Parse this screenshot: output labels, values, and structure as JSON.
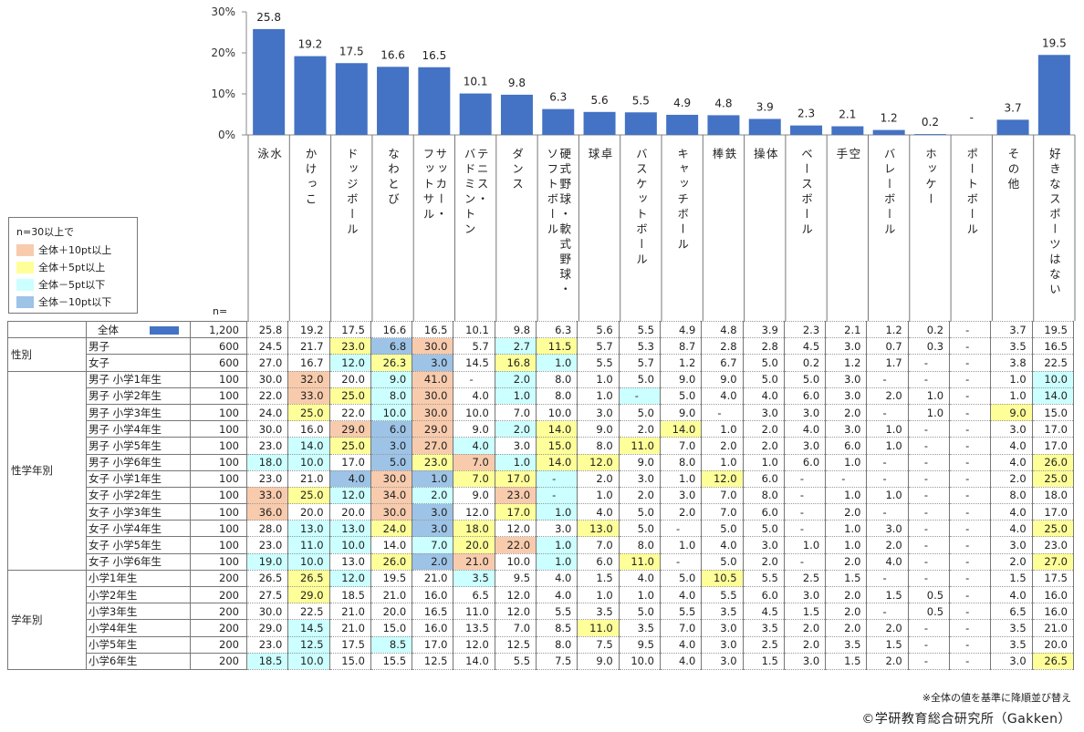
{
  "chart_data": {
    "type": "bar",
    "yaxis": {
      "ylim": [
        0,
        30
      ],
      "ticks": [
        "0%",
        "10%",
        "20%",
        "30%"
      ]
    },
    "categories": [
      "水泳",
      "かけっこ",
      "ドッジボール",
      "なわとび",
      "サッカー・フットサル",
      "テニス・バドミントン",
      "ダンス",
      "硬式野球・軟式野球・ソフトボール",
      "卓球",
      "バスケットボール",
      "キャッチボール",
      "鉄棒",
      "体操",
      "ベースボール",
      "空手",
      "バレーボール",
      "ホッケー",
      "ポートボール",
      "その他",
      "好きなスポーツはない"
    ],
    "category_lines": [
      [
        "水",
        "泳"
      ],
      [
        "かけっこ"
      ],
      [
        "ドッジボール"
      ],
      [
        "なわとび"
      ],
      [
        "サッカー・",
        "フットサル"
      ],
      [
        "テニス・",
        "バドミントン"
      ],
      [
        "ダンス"
      ],
      [
        "硬式野球・軟式野球・",
        "ソフトボール"
      ],
      [
        "卓",
        "球"
      ],
      [
        "バスケットボール"
      ],
      [
        "キャッチボール"
      ],
      [
        "鉄",
        "棒"
      ],
      [
        "体",
        "操"
      ],
      [
        "ベースボール"
      ],
      [
        "空",
        "手"
      ],
      [
        "バレーボール"
      ],
      [
        "ホッケー"
      ],
      [
        "ポートボール"
      ],
      [
        "その他"
      ],
      [
        "好きなスポーツはない"
      ]
    ],
    "values": [
      25.8,
      19.2,
      17.5,
      16.6,
      16.5,
      10.1,
      9.8,
      6.3,
      5.6,
      5.5,
      4.9,
      4.8,
      3.9,
      2.3,
      2.1,
      1.2,
      0.2,
      null,
      3.7,
      19.5
    ],
    "value_labels": [
      "25.8",
      "19.2",
      "17.5",
      "16.6",
      "16.5",
      "10.1",
      "9.8",
      "6.3",
      "5.6",
      "5.5",
      "4.9",
      "4.8",
      "3.9",
      "2.3",
      "2.1",
      "1.2",
      "0.2",
      "-",
      "3.7",
      "19.5"
    ],
    "bar_color": "#4472c4",
    "table": {
      "n_header": "n=",
      "groups": [
        {
          "label": "",
          "rows": [
            {
              "label": "全体",
              "n": "1,200",
              "cells": [
                "25.8",
                "19.2",
                "17.5",
                "16.6",
                "16.5",
                "10.1",
                "9.8",
                "6.3",
                "5.6",
                "5.5",
                "4.9",
                "4.8",
                "3.9",
                "2.3",
                "2.1",
                "1.2",
                "0.2",
                "-",
                "3.7",
                "19.5"
              ],
              "hl": "....................",
              "total": true
            }
          ]
        },
        {
          "label": "性別",
          "rows": [
            {
              "label": "男子",
              "n": "600",
              "cells": [
                "24.5",
                "21.7",
                "23.0",
                "6.8",
                "30.0",
                "5.7",
                "2.7",
                "11.5",
                "5.7",
                "5.3",
                "8.7",
                "2.8",
                "2.8",
                "4.5",
                "3.0",
                "0.7",
                "0.3",
                "-",
                "3.5",
                "16.5"
              ],
              "hl": "..ybo.cy............"
            },
            {
              "label": "女子",
              "n": "600",
              "cells": [
                "27.0",
                "16.7",
                "12.0",
                "26.3",
                "3.0",
                "14.5",
                "16.8",
                "1.0",
                "5.5",
                "5.7",
                "1.2",
                "6.7",
                "5.0",
                "0.2",
                "1.2",
                "1.7",
                "-",
                "-",
                "3.8",
                "22.5"
              ],
              "hl": "..cyb.yc............"
            }
          ]
        },
        {
          "label": "性学年別",
          "rows": [
            {
              "label": "男子 小学1年生",
              "n": "100",
              "cells": [
                "30.0",
                "32.0",
                "20.0",
                "9.0",
                "41.0",
                "-",
                "2.0",
                "8.0",
                "1.0",
                "5.0",
                "9.0",
                "9.0",
                "5.0",
                "5.0",
                "3.0",
                "-",
                "-",
                "-",
                "1.0",
                "10.0"
              ],
              "hl": ".o.co.c............c"
            },
            {
              "label": "男子 小学2年生",
              "n": "100",
              "cells": [
                "22.0",
                "33.0",
                "25.0",
                "8.0",
                "30.0",
                "4.0",
                "1.0",
                "8.0",
                "1.0",
                "-",
                "5.0",
                "4.0",
                "4.0",
                "6.0",
                "3.0",
                "2.0",
                "1.0",
                "-",
                "1.0",
                "14.0"
              ],
              "hl": ".oyco.c..c.........c"
            },
            {
              "label": "男子 小学3年生",
              "n": "100",
              "cells": [
                "24.0",
                "25.0",
                "22.0",
                "10.0",
                "30.0",
                "10.0",
                "7.0",
                "10.0",
                "3.0",
                "5.0",
                "9.0",
                "-",
                "3.0",
                "3.0",
                "2.0",
                "-",
                "1.0",
                "-",
                "9.0",
                "15.0"
              ],
              "hl": ".y.co.............y."
            },
            {
              "label": "男子 小学4年生",
              "n": "100",
              "cells": [
                "30.0",
                "16.0",
                "29.0",
                "6.0",
                "29.0",
                "9.0",
                "2.0",
                "14.0",
                "9.0",
                "2.0",
                "14.0",
                "1.0",
                "2.0",
                "4.0",
                "3.0",
                "1.0",
                "-",
                "-",
                "3.0",
                "17.0"
              ],
              "hl": "..obo.cy..y........."
            },
            {
              "label": "男子 小学5年生",
              "n": "100",
              "cells": [
                "23.0",
                "14.0",
                "25.0",
                "3.0",
                "27.0",
                "4.0",
                "3.0",
                "15.0",
                "8.0",
                "11.0",
                "7.0",
                "2.0",
                "2.0",
                "3.0",
                "6.0",
                "1.0",
                "-",
                "-",
                "4.0",
                "17.0"
              ],
              "hl": ".cybocly.y.........."
            },
            {
              "label": "男子 小学6年生",
              "n": "100",
              "cells": [
                "18.0",
                "10.0",
                "17.0",
                "5.0",
                "23.0",
                "7.0",
                "1.0",
                "14.0",
                "12.0",
                "9.0",
                "8.0",
                "1.0",
                "1.0",
                "6.0",
                "1.0",
                "-",
                "-",
                "-",
                "4.0",
                "26.0"
              ],
              "hl": "cc.byocyy..........y"
            },
            {
              "label": "女子 小学1年生",
              "n": "100",
              "cells": [
                "23.0",
                "21.0",
                "4.0",
                "30.0",
                "1.0",
                "7.0",
                "17.0",
                "-",
                "2.0",
                "3.0",
                "1.0",
                "12.0",
                "6.0",
                "-",
                "-",
                "-",
                "-",
                "-",
                "2.0",
                "25.0"
              ],
              "hl": "..bobyyc...y.......y"
            },
            {
              "label": "女子 小学2年生",
              "n": "100",
              "cells": [
                "33.0",
                "25.0",
                "12.0",
                "34.0",
                "2.0",
                "9.0",
                "23.0",
                "-",
                "1.0",
                "2.0",
                "3.0",
                "7.0",
                "8.0",
                "-",
                "1.0",
                "1.0",
                "-",
                "-",
                "8.0",
                "18.0"
              ],
              "hl": "oycoc.oc............"
            },
            {
              "label": "女子 小学3年生",
              "n": "100",
              "cells": [
                "36.0",
                "20.0",
                "20.0",
                "30.0",
                "3.0",
                "12.0",
                "17.0",
                "1.0",
                "4.0",
                "5.0",
                "2.0",
                "7.0",
                "6.0",
                "-",
                "2.0",
                "-",
                "-",
                "-",
                "4.0",
                "17.0"
              ],
              "hl": "o..ob.yc............"
            },
            {
              "label": "女子 小学4年生",
              "n": "100",
              "cells": [
                "28.0",
                "13.0",
                "13.0",
                "24.0",
                "3.0",
                "18.0",
                "12.0",
                "3.0",
                "13.0",
                "5.0",
                "-",
                "5.0",
                "5.0",
                "-",
                "1.0",
                "3.0",
                "-",
                "-",
                "4.0",
                "25.0"
              ],
              "hl": ".ccyby..y..........y"
            },
            {
              "label": "女子 小学5年生",
              "n": "100",
              "cells": [
                "23.0",
                "11.0",
                "10.0",
                "14.0",
                "7.0",
                "20.0",
                "22.0",
                "1.0",
                "7.0",
                "8.0",
                "1.0",
                "4.0",
                "3.0",
                "1.0",
                "1.0",
                "2.0",
                "-",
                "-",
                "3.0",
                "23.0"
              ],
              "hl": ".cc.cyoc............"
            },
            {
              "label": "女子 小学6年生",
              "n": "100",
              "cells": [
                "19.0",
                "10.0",
                "13.0",
                "26.0",
                "2.0",
                "21.0",
                "10.0",
                "1.0",
                "6.0",
                "11.0",
                "-",
                "5.0",
                "2.0",
                "-",
                "2.0",
                "4.0",
                "-",
                "-",
                "2.0",
                "27.0"
              ],
              "hl": "cc.ybo.c.y.........y"
            }
          ]
        },
        {
          "label": "学年別",
          "rows": [
            {
              "label": "小学1年生",
              "n": "200",
              "cells": [
                "26.5",
                "26.5",
                "12.0",
                "19.5",
                "21.0",
                "3.5",
                "9.5",
                "4.0",
                "1.5",
                "4.0",
                "5.0",
                "10.5",
                "5.5",
                "2.5",
                "1.5",
                "-",
                "-",
                "-",
                "1.5",
                "17.5"
              ],
              "hl": ".yc..c.....y........"
            },
            {
              "label": "小学2年生",
              "n": "200",
              "cells": [
                "27.5",
                "29.0",
                "18.5",
                "21.0",
                "16.0",
                "6.5",
                "12.0",
                "4.0",
                "1.0",
                "1.0",
                "4.0",
                "5.5",
                "6.0",
                "3.0",
                "2.0",
                "1.5",
                "0.5",
                "-",
                "4.0",
                "16.0"
              ],
              "hl": ".y.................."
            },
            {
              "label": "小学3年生",
              "n": "200",
              "cells": [
                "30.0",
                "22.5",
                "21.0",
                "20.0",
                "16.5",
                "11.0",
                "12.0",
                "5.5",
                "3.5",
                "5.0",
                "5.5",
                "3.5",
                "4.5",
                "1.5",
                "2.0",
                "-",
                "0.5",
                "-",
                "6.5",
                "16.0"
              ],
              "hl": "...................."
            },
            {
              "label": "小学4年生",
              "n": "200",
              "cells": [
                "29.0",
                "14.5",
                "21.0",
                "15.0",
                "16.0",
                "13.5",
                "7.0",
                "8.5",
                "11.0",
                "3.5",
                "7.0",
                "3.0",
                "3.5",
                "2.0",
                "2.0",
                "2.0",
                "-",
                "-",
                "3.5",
                "21.0"
              ],
              "hl": ".c......y..........."
            },
            {
              "label": "小学5年生",
              "n": "200",
              "cells": [
                "23.0",
                "12.5",
                "17.5",
                "8.5",
                "17.0",
                "12.0",
                "12.5",
                "8.0",
                "7.5",
                "9.5",
                "4.0",
                "3.0",
                "2.5",
                "2.0",
                "3.5",
                "1.5",
                "-",
                "-",
                "3.5",
                "20.0"
              ],
              "hl": ".c.c................"
            },
            {
              "label": "小学6年生",
              "n": "200",
              "cells": [
                "18.5",
                "10.0",
                "15.0",
                "15.5",
                "12.5",
                "14.0",
                "5.5",
                "7.5",
                "9.0",
                "10.0",
                "4.0",
                "3.0",
                "1.5",
                "3.0",
                "1.5",
                "2.0",
                "-",
                "-",
                "3.0",
                "26.5"
              ],
              "hl": "cc.................y"
            }
          ]
        }
      ]
    }
  },
  "legend": {
    "title": "n=30以上で",
    "items": [
      {
        "label": "全体＋10pt以上",
        "color": "#f8cbad"
      },
      {
        "label": "全体＋5pt以上",
        "color": "#ffff99"
      },
      {
        "label": "全体－5pt以下",
        "color": "#ccffff"
      },
      {
        "label": "全体－10pt以下",
        "color": "#9dc3e6"
      }
    ]
  },
  "note": "※全体の値を基準に降順並び替え",
  "credit": "©学研教育総合研究所（Gakken）"
}
